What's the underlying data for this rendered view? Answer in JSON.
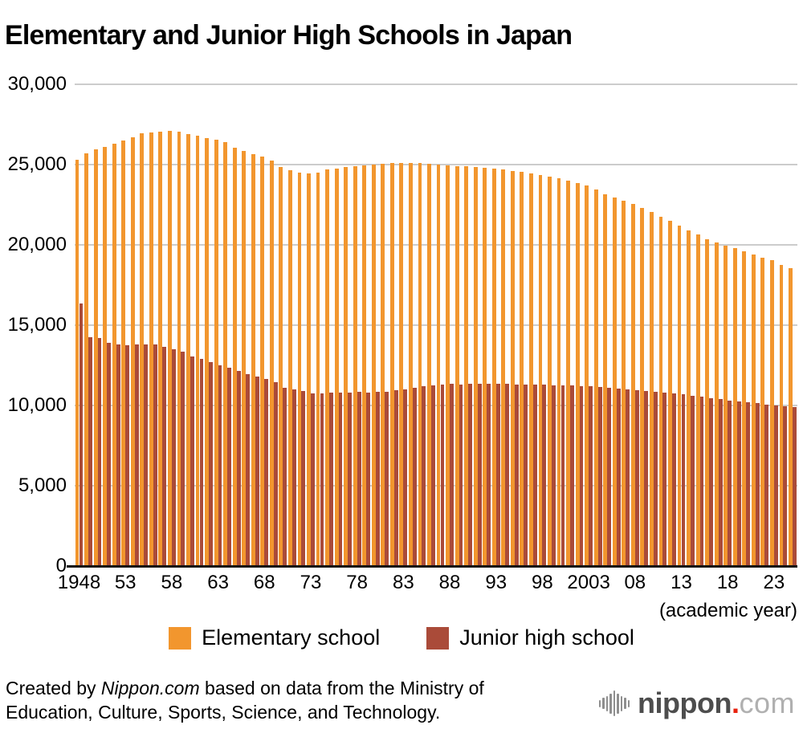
{
  "title": "Elementary and Junior High Schools in Japan",
  "chart_data": {
    "type": "bar",
    "title": "Elementary and Junior High Schools in Japan",
    "xlabel": "(academic year)",
    "ylabel": "",
    "ylim": [
      0,
      30000
    ],
    "grid": true,
    "legend_position": "bottom",
    "y_ticks": [
      {
        "value": 30000,
        "label": "30,000"
      },
      {
        "value": 25000,
        "label": "25,000"
      },
      {
        "value": 20000,
        "label": "20,000"
      },
      {
        "value": 15000,
        "label": "15,000"
      },
      {
        "value": 10000,
        "label": "10,000"
      },
      {
        "value": 5000,
        "label": "5,000"
      },
      {
        "value": 0,
        "label": "0"
      }
    ],
    "x_ticks": [
      {
        "year": 1948,
        "label": "1948"
      },
      {
        "year": 1953,
        "label": "53"
      },
      {
        "year": 1958,
        "label": "58"
      },
      {
        "year": 1963,
        "label": "63"
      },
      {
        "year": 1968,
        "label": "68"
      },
      {
        "year": 1973,
        "label": "73"
      },
      {
        "year": 1978,
        "label": "78"
      },
      {
        "year": 1983,
        "label": "83"
      },
      {
        "year": 1988,
        "label": "88"
      },
      {
        "year": 1993,
        "label": "93"
      },
      {
        "year": 1998,
        "label": "98"
      },
      {
        "year": 2003,
        "label": "2003"
      },
      {
        "year": 2008,
        "label": "08"
      },
      {
        "year": 2013,
        "label": "13"
      },
      {
        "year": 2018,
        "label": "18"
      },
      {
        "year": 2023,
        "label": "23"
      }
    ],
    "x_unit_label": "(academic year)",
    "years": [
      1948,
      1949,
      1950,
      1951,
      1952,
      1953,
      1954,
      1955,
      1956,
      1957,
      1958,
      1959,
      1960,
      1961,
      1962,
      1963,
      1964,
      1965,
      1966,
      1967,
      1968,
      1969,
      1970,
      1971,
      1972,
      1973,
      1974,
      1975,
      1976,
      1977,
      1978,
      1979,
      1980,
      1981,
      1982,
      1983,
      1984,
      1985,
      1986,
      1987,
      1988,
      1989,
      1990,
      1991,
      1992,
      1993,
      1994,
      1995,
      1996,
      1997,
      1998,
      1999,
      2000,
      2001,
      2002,
      2003,
      2004,
      2005,
      2006,
      2007,
      2008,
      2009,
      2010,
      2011,
      2012,
      2013,
      2014,
      2015,
      2016,
      2017,
      2018,
      2019,
      2020,
      2021,
      2022,
      2023,
      2024,
      2025
    ],
    "series": [
      {
        "name": "Elementary school",
        "color": "#F2962E",
        "values": [
          25240,
          25640,
          25880,
          26050,
          26250,
          26450,
          26650,
          26880,
          26950,
          27010,
          27050,
          27020,
          26860,
          26740,
          26620,
          26490,
          26340,
          25980,
          25800,
          25610,
          25440,
          25190,
          24790,
          24610,
          24470,
          24380,
          24470,
          24650,
          24710,
          24780,
          24830,
          24890,
          24950,
          25010,
          25040,
          25050,
          25060,
          25040,
          25010,
          24970,
          24920,
          24870,
          24830,
          24800,
          24760,
          24700,
          24640,
          24550,
          24480,
          24380,
          24300,
          24190,
          24110,
          23960,
          23810,
          23630,
          23420,
          23120,
          22880,
          22690,
          22480,
          22260,
          22000,
          21720,
          21460,
          21130,
          20850,
          20600,
          20310,
          20100,
          19890,
          19740,
          19530,
          19340,
          19160,
          18980,
          18700,
          18500
        ]
      },
      {
        "name": "Junior high school",
        "color": "#AA4B39",
        "values": [
          16290,
          14220,
          14170,
          13840,
          13750,
          13720,
          13750,
          13770,
          13730,
          13620,
          13450,
          13310,
          12990,
          12850,
          12650,
          12450,
          12280,
          12080,
          11920,
          11750,
          11580,
          11380,
          11040,
          10940,
          10840,
          10700,
          10720,
          10750,
          10740,
          10730,
          10780,
          10750,
          10780,
          10810,
          10880,
          10950,
          11040,
          11130,
          11200,
          11260,
          11290,
          11260,
          11280,
          11290,
          11300,
          11290,
          11290,
          11270,
          11270,
          11260,
          11240,
          11220,
          11210,
          11190,
          11160,
          11130,
          11100,
          11040,
          10990,
          10960,
          10920,
          10860,
          10820,
          10750,
          10700,
          10630,
          10560,
          10480,
          10400,
          10330,
          10270,
          10220,
          10140,
          10080,
          10010,
          9940,
          9900,
          9830
        ]
      }
    ]
  },
  "legend": {
    "elementary_label": "Elementary school",
    "junior_label": "Junior high school"
  },
  "footer": {
    "credit_prefix": "Created by ",
    "credit_source": "Nippon.com",
    "credit_suffix": " based on data from the Ministry of",
    "credit_line2": "Education, Culture, Sports, Science, and Technology."
  },
  "logo": {
    "word": "nippon",
    "dot": ".",
    "tld": "com"
  },
  "colors": {
    "elementary": "#F2962E",
    "junior_high": "#AA4B39",
    "gridline": "#cccccc",
    "axis": "#111111",
    "logo_red": "#e8220f"
  }
}
